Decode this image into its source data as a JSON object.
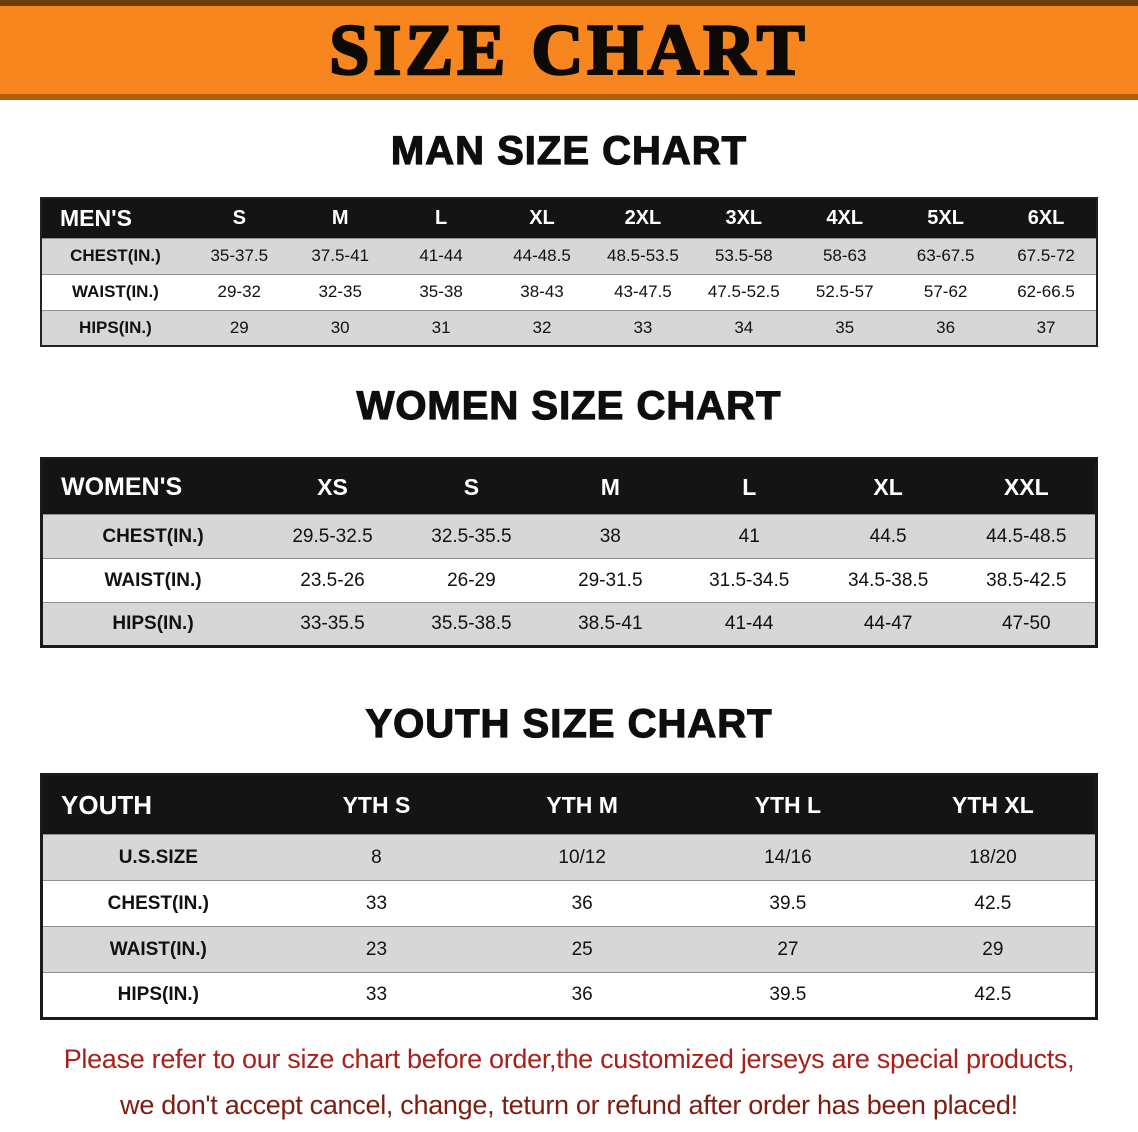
{
  "banner": {
    "title": "SIZE CHART"
  },
  "colors": {
    "banner_bg": "#f6861d",
    "table_header_bg": "#141414",
    "row_alt_bg": "#d7d7d7",
    "footer_line1": "#a82019",
    "footer_line2": "#7d1d10"
  },
  "sections": [
    {
      "heading": "MAN SIZE CHART",
      "table": {
        "header": [
          "MEN'S",
          "S",
          "M",
          "L",
          "XL",
          "2XL",
          "3XL",
          "4XL",
          "5XL",
          "6XL"
        ],
        "rows": [
          [
            "CHEST(IN.)",
            "35-37.5",
            "37.5-41",
            "41-44",
            "44-48.5",
            "48.5-53.5",
            "53.5-58",
            "58-63",
            "63-67.5",
            "67.5-72"
          ],
          [
            "WAIST(IN.)",
            "29-32",
            "32-35",
            "35-38",
            "38-43",
            "43-47.5",
            "47.5-52.5",
            "52.5-57",
            "57-62",
            "62-66.5"
          ],
          [
            "HIPS(IN.)",
            "29",
            "30",
            "31",
            "32",
            "33",
            "34",
            "35",
            "36",
            "37"
          ]
        ]
      }
    },
    {
      "heading": "WOMEN SIZE CHART",
      "table": {
        "header": [
          "WOMEN'S",
          "XS",
          "S",
          "M",
          "L",
          "XL",
          "XXL"
        ],
        "rows": [
          [
            "CHEST(IN.)",
            "29.5-32.5",
            "32.5-35.5",
            "38",
            "41",
            "44.5",
            "44.5-48.5"
          ],
          [
            "WAIST(IN.)",
            "23.5-26",
            "26-29",
            "29-31.5",
            "31.5-34.5",
            "34.5-38.5",
            "38.5-42.5"
          ],
          [
            "HIPS(IN.)",
            "33-35.5",
            "35.5-38.5",
            "38.5-41",
            "41-44",
            "44-47",
            "47-50"
          ]
        ]
      }
    },
    {
      "heading": "YOUTH SIZE CHART",
      "table": {
        "header": [
          "YOUTH",
          "YTH S",
          "YTH M",
          "YTH L",
          "YTH XL"
        ],
        "rows": [
          [
            "U.S.SIZE",
            "8",
            "10/12",
            "14/16",
            "18/20"
          ],
          [
            "CHEST(IN.)",
            "33",
            "36",
            "39.5",
            "42.5"
          ],
          [
            "WAIST(IN.)",
            "23",
            "25",
            "27",
            "29"
          ],
          [
            "HIPS(IN.)",
            "33",
            "36",
            "39.5",
            "42.5"
          ]
        ]
      }
    }
  ],
  "footer": {
    "line1": "Please refer to our size chart before order,the customized jerseys are special products,",
    "line2": "we don't accept cancel, change, teturn or refund after order has been placed!"
  }
}
